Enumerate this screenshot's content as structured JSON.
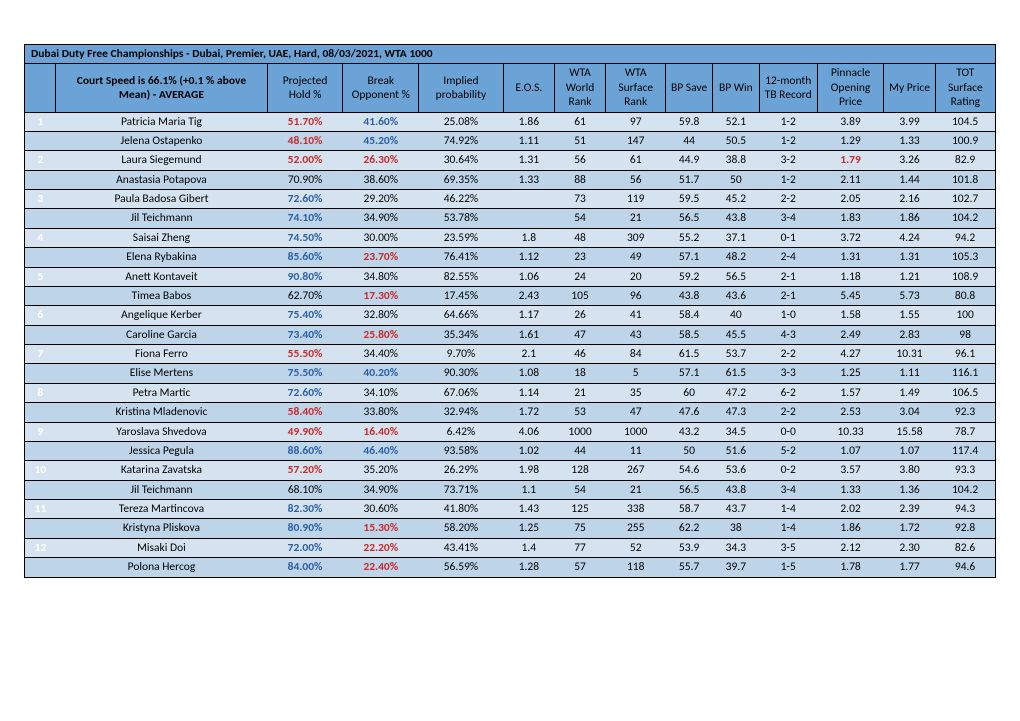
{
  "title": "Dubai Duty Free Championships - Dubai, Premier, UAE, Hard, 08/03/2021, WTA 1000",
  "header": {
    "name": "Court Speed is 66.1% (+0.1 % above Mean) - AVERAGE",
    "ph": "Projected Hold %",
    "bo": "Break Opponent %",
    "ip": "Implied probability",
    "eos": "E.O.S.",
    "wr": "WTA World Rank",
    "sr": "WTA Surface Rank",
    "bps": "BP Save",
    "bpw": "BP Win",
    "tb": "12-month TB Record",
    "pop": "Pinnacle Opening Price",
    "mp": "My Price",
    "tot": "TOT Surface Rating"
  },
  "groups": [
    {
      "num": "1",
      "rows": [
        {
          "name": "Patricia Maria Tig",
          "ph": "51.70%",
          "ph_c": "red",
          "bo": "41.60%",
          "bo_c": "blue",
          "ip": "25.08%",
          "eos": "1.86",
          "wr": "61",
          "sr": "97",
          "bps": "59.8",
          "bpw": "52.1",
          "tb": "1-2",
          "pop": "3.89",
          "mp": "3.99",
          "tot": "104.5"
        },
        {
          "name": "Jelena Ostapenko",
          "ph": "48.10%",
          "ph_c": "red",
          "bo": "45.20%",
          "bo_c": "blue",
          "ip": "74.92%",
          "eos": "1.11",
          "wr": "51",
          "sr": "147",
          "bps": "44",
          "bpw": "50.5",
          "tb": "1-2",
          "pop": "1.29",
          "mp": "1.33",
          "tot": "100.9"
        }
      ]
    },
    {
      "num": "2",
      "rows": [
        {
          "name": "Laura Siegemund",
          "ph": "52.00%",
          "ph_c": "red",
          "bo": "26.30%",
          "bo_c": "red",
          "ip": "30.64%",
          "eos": "1.31",
          "wr": "56",
          "sr": "61",
          "bps": "44.9",
          "bpw": "38.8",
          "tb": "3-2",
          "pop": "1.79",
          "pop_c": "red",
          "mp": "3.26",
          "tot": "82.9"
        },
        {
          "name": "Anastasia Potapova",
          "ph": "70.90%",
          "bo": "38.60%",
          "ip": "69.35%",
          "eos": "1.33",
          "wr": "88",
          "sr": "56",
          "bps": "51.7",
          "bpw": "50",
          "tb": "1-2",
          "pop": "2.11",
          "mp": "1.44",
          "tot": "101.8"
        }
      ]
    },
    {
      "num": "3",
      "rows": [
        {
          "name": "Paula Badosa Gibert",
          "ph": "72.60%",
          "ph_c": "blue",
          "bo": "29.20%",
          "ip": "46.22%",
          "eos": "",
          "wr": "73",
          "sr": "119",
          "bps": "59.5",
          "bpw": "45.2",
          "tb": "2-2",
          "pop": "2.05",
          "mp": "2.16",
          "tot": "102.7"
        },
        {
          "name": "Jil Teichmann",
          "ph": "74.10%",
          "ph_c": "blue",
          "bo": "34.90%",
          "ip": "53.78%",
          "eos": "",
          "wr": "54",
          "sr": "21",
          "bps": "56.5",
          "bpw": "43.8",
          "tb": "3-4",
          "pop": "1.83",
          "mp": "1.86",
          "tot": "104.2"
        }
      ]
    },
    {
      "num": "4",
      "rows": [
        {
          "name": "Saisai Zheng",
          "ph": "74.50%",
          "ph_c": "blue",
          "bo": "30.00%",
          "ip": "23.59%",
          "eos": "1.8",
          "wr": "48",
          "sr": "309",
          "bps": "55.2",
          "bpw": "37.1",
          "tb": "0-1",
          "pop": "3.72",
          "mp": "4.24",
          "tot": "94.2"
        },
        {
          "name": "Elena Rybakina",
          "ph": "85.60%",
          "ph_c": "blue",
          "bo": "23.70%",
          "bo_c": "red",
          "ip": "76.41%",
          "eos": "1.12",
          "wr": "23",
          "sr": "49",
          "bps": "57.1",
          "bpw": "48.2",
          "tb": "2-4",
          "pop": "1.31",
          "mp": "1.31",
          "tot": "105.3"
        }
      ]
    },
    {
      "num": "5",
      "rows": [
        {
          "name": "Anett Kontaveit",
          "ph": "90.80%",
          "ph_c": "blue",
          "bo": "34.80%",
          "ip": "82.55%",
          "eos": "1.06",
          "wr": "24",
          "sr": "20",
          "bps": "59.2",
          "bpw": "56.5",
          "tb": "2-1",
          "pop": "1.18",
          "mp": "1.21",
          "tot": "108.9"
        },
        {
          "name": "Timea Babos",
          "ph": "62.70%",
          "bo": "17.30%",
          "bo_c": "red",
          "ip": "17.45%",
          "eos": "2.43",
          "wr": "105",
          "sr": "96",
          "bps": "43.8",
          "bpw": "43.6",
          "tb": "2-1",
          "pop": "5.45",
          "mp": "5.73",
          "tot": "80.8"
        }
      ]
    },
    {
      "num": "6",
      "rows": [
        {
          "name": "Angelique Kerber",
          "ph": "75.40%",
          "ph_c": "blue",
          "bo": "32.80%",
          "ip": "64.66%",
          "eos": "1.17",
          "wr": "26",
          "sr": "41",
          "bps": "58.4",
          "bpw": "40",
          "tb": "1-0",
          "pop": "1.58",
          "mp": "1.55",
          "tot": "100"
        },
        {
          "name": "Caroline Garcia",
          "ph": "73.40%",
          "ph_c": "blue",
          "bo": "25.80%",
          "bo_c": "red",
          "ip": "35.34%",
          "eos": "1.61",
          "wr": "47",
          "sr": "43",
          "bps": "58.5",
          "bpw": "45.5",
          "tb": "4-3",
          "pop": "2.49",
          "mp": "2.83",
          "tot": "98"
        }
      ]
    },
    {
      "num": "7",
      "rows": [
        {
          "name": "Fiona Ferro",
          "ph": "55.50%",
          "ph_c": "red",
          "bo": "34.40%",
          "ip": "9.70%",
          "eos": "2.1",
          "wr": "46",
          "sr": "84",
          "bps": "61.5",
          "bpw": "53.7",
          "tb": "2-2",
          "pop": "4.27",
          "mp": "10.31",
          "tot": "96.1"
        },
        {
          "name": "Elise Mertens",
          "ph": "75.50%",
          "ph_c": "blue",
          "bo": "40.20%",
          "bo_c": "blue",
          "ip": "90.30%",
          "eos": "1.08",
          "wr": "18",
          "sr": "5",
          "bps": "57.1",
          "bpw": "61.5",
          "tb": "3-3",
          "pop": "1.25",
          "mp": "1.11",
          "tot": "116.1"
        }
      ]
    },
    {
      "num": "8",
      "rows": [
        {
          "name": "Petra Martic",
          "ph": "72.60%",
          "ph_c": "blue",
          "bo": "34.10%",
          "ip": "67.06%",
          "eos": "1.14",
          "wr": "21",
          "sr": "35",
          "bps": "60",
          "bpw": "47.2",
          "tb": "6-2",
          "pop": "1.57",
          "mp": "1.49",
          "tot": "106.5"
        },
        {
          "name": "Kristina Mladenovic",
          "ph": "58.40%",
          "ph_c": "red",
          "bo": "33.80%",
          "ip": "32.94%",
          "eos": "1.72",
          "wr": "53",
          "sr": "47",
          "bps": "47.6",
          "bpw": "47.3",
          "tb": "2-2",
          "pop": "2.53",
          "mp": "3.04",
          "tot": "92.3"
        }
      ]
    },
    {
      "num": "9",
      "rows": [
        {
          "name": "Yaroslava Shvedova",
          "ph": "49.90%",
          "ph_c": "red",
          "bo": "16.40%",
          "bo_c": "red",
          "ip": "6.42%",
          "eos": "4.06",
          "wr": "1000",
          "sr": "1000",
          "bps": "43.2",
          "bpw": "34.5",
          "tb": "0-0",
          "pop": "10.33",
          "mp": "15.58",
          "tot": "78.7"
        },
        {
          "name": "Jessica Pegula",
          "ph": "88.60%",
          "ph_c": "blue",
          "bo": "46.40%",
          "bo_c": "blue",
          "ip": "93.58%",
          "eos": "1.02",
          "wr": "44",
          "sr": "11",
          "bps": "50",
          "bpw": "51.6",
          "tb": "5-2",
          "pop": "1.07",
          "mp": "1.07",
          "tot": "117.4"
        }
      ]
    },
    {
      "num": "10",
      "rows": [
        {
          "name": "Katarina Zavatska",
          "ph": "57.20%",
          "ph_c": "red",
          "bo": "35.20%",
          "ip": "26.29%",
          "eos": "1.98",
          "wr": "128",
          "sr": "267",
          "bps": "54.6",
          "bpw": "53.6",
          "tb": "0-2",
          "pop": "3.57",
          "mp": "3.80",
          "tot": "93.3"
        },
        {
          "name": "Jil Teichmann",
          "ph": "68.10%",
          "bo": "34.90%",
          "ip": "73.71%",
          "eos": "1.1",
          "wr": "54",
          "sr": "21",
          "bps": "56.5",
          "bpw": "43.8",
          "tb": "3-4",
          "pop": "1.33",
          "mp": "1.36",
          "tot": "104.2"
        }
      ]
    },
    {
      "num": "11",
      "rows": [
        {
          "name": "Tereza Martincova",
          "ph": "82.30%",
          "ph_c": "blue",
          "bo": "30.60%",
          "ip": "41.80%",
          "eos": "1.43",
          "wr": "125",
          "sr": "338",
          "bps": "58.7",
          "bpw": "43.7",
          "tb": "1-4",
          "pop": "2.02",
          "mp": "2.39",
          "tot": "94.3"
        },
        {
          "name": "Kristyna Pliskova",
          "ph": "80.90%",
          "ph_c": "blue",
          "bo": "15.30%",
          "bo_c": "red",
          "ip": "58.20%",
          "eos": "1.25",
          "wr": "75",
          "sr": "255",
          "bps": "62.2",
          "bpw": "38",
          "tb": "1-4",
          "pop": "1.86",
          "mp": "1.72",
          "tot": "92.8"
        }
      ]
    },
    {
      "num": "12",
      "rows": [
        {
          "name": "Misaki Doi",
          "ph": "72.00%",
          "ph_c": "blue",
          "bo": "22.20%",
          "bo_c": "red",
          "ip": "43.41%",
          "eos": "1.4",
          "wr": "77",
          "sr": "52",
          "bps": "53.9",
          "bpw": "34.3",
          "tb": "3-5",
          "pop": "2.12",
          "mp": "2.30",
          "tot": "82.6"
        },
        {
          "name": "Polona Hercog",
          "ph": "84.00%",
          "ph_c": "blue",
          "bo": "22.40%",
          "bo_c": "red",
          "ip": "56.59%",
          "eos": "1.28",
          "wr": "57",
          "sr": "118",
          "bps": "55.7",
          "bpw": "39.7",
          "tb": "1-5",
          "pop": "1.78",
          "mp": "1.77",
          "tot": "94.6"
        }
      ]
    }
  ]
}
